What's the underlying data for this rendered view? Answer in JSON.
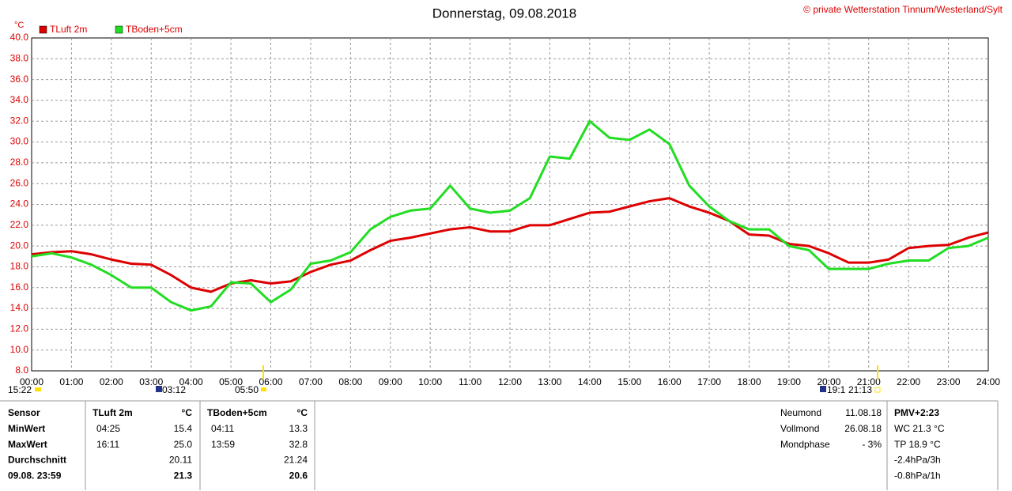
{
  "chart_data": {
    "type": "line",
    "title": "Donnerstag, 09.08.2018",
    "copyright": "© private Wetterstation Tinnum/Westerland/Sylt",
    "y_unit": "°C",
    "x": [
      0,
      0.5,
      1,
      1.5,
      2,
      2.5,
      3,
      3.5,
      4,
      4.5,
      5,
      5.5,
      6,
      6.5,
      7,
      7.5,
      8,
      8.5,
      9,
      9.5,
      10,
      10.5,
      11,
      11.5,
      12,
      12.5,
      13,
      13.5,
      14,
      14.5,
      15,
      15.5,
      16,
      16.5,
      17,
      17.5,
      18,
      18.5,
      19,
      19.5,
      20,
      20.5,
      21,
      21.5,
      22,
      22.5,
      23,
      23.5,
      24
    ],
    "series": [
      {
        "name": "TLuft 2m",
        "color": "#dd0000",
        "values": [
          19.2,
          19.4,
          19.5,
          19.2,
          18.7,
          18.3,
          18.2,
          17.2,
          16.0,
          15.6,
          16.4,
          16.7,
          16.4,
          16.6,
          17.5,
          18.2,
          18.6,
          19.6,
          20.5,
          20.8,
          21.2,
          21.6,
          21.8,
          21.4,
          21.4,
          22.0,
          22.0,
          22.6,
          23.2,
          23.3,
          23.8,
          24.3,
          24.6,
          23.8,
          23.2,
          22.4,
          21.1,
          21.0,
          20.2,
          20.0,
          19.3,
          18.4,
          18.4,
          18.7,
          19.8,
          20.0,
          20.1,
          20.8,
          21.3
        ]
      },
      {
        "name": "TBoden+5cm",
        "color": "#22dd22",
        "values": [
          19.0,
          19.3,
          18.9,
          18.2,
          17.2,
          16.0,
          16.0,
          14.6,
          13.8,
          14.2,
          16.5,
          16.4,
          14.6,
          15.8,
          18.3,
          18.6,
          19.4,
          21.6,
          22.8,
          23.4,
          23.6,
          25.8,
          23.6,
          23.2,
          23.4,
          24.6,
          28.6,
          28.4,
          32.0,
          30.4,
          30.2,
          31.2,
          29.8,
          25.8,
          23.8,
          22.4,
          21.6,
          21.6,
          20.0,
          19.6,
          17.8,
          17.8,
          17.8,
          18.3,
          18.6,
          18.6,
          19.8,
          20.0,
          20.8
        ]
      }
    ],
    "xlim": [
      0,
      24
    ],
    "xticks": [
      {
        "value": 0,
        "label": "00:00"
      },
      {
        "value": 1,
        "label": "01:00"
      },
      {
        "value": 2,
        "label": "02:00"
      },
      {
        "value": 3,
        "label": "03:00"
      },
      {
        "value": 4,
        "label": "04:00"
      },
      {
        "value": 5,
        "label": "05:00"
      },
      {
        "value": 6,
        "label": "06:00"
      },
      {
        "value": 7,
        "label": "07:00"
      },
      {
        "value": 8,
        "label": "08:00"
      },
      {
        "value": 9,
        "label": "09:00"
      },
      {
        "value": 10,
        "label": "10:00"
      },
      {
        "value": 11,
        "label": "11:00"
      },
      {
        "value": 12,
        "label": "12:00"
      },
      {
        "value": 13,
        "label": "13:00"
      },
      {
        "value": 14,
        "label": "14:00"
      },
      {
        "value": 15,
        "label": "15:00"
      },
      {
        "value": 16,
        "label": "16:00"
      },
      {
        "value": 17,
        "label": "17:00"
      },
      {
        "value": 18,
        "label": "18:00"
      },
      {
        "value": 19,
        "label": "19:00"
      },
      {
        "value": 20,
        "label": "20:00"
      },
      {
        "value": 21,
        "label": "21:00"
      },
      {
        "value": 22,
        "label": "22:00"
      },
      {
        "value": 23,
        "label": "23:00"
      },
      {
        "value": 24,
        "label": "24:00"
      }
    ],
    "ylim": [
      8,
      40
    ],
    "yticks": [
      {
        "value": 8,
        "label": "8.0"
      },
      {
        "value": 10,
        "label": "10.0"
      },
      {
        "value": 12,
        "label": "12.0"
      },
      {
        "value": 14,
        "label": "14.0"
      },
      {
        "value": 16,
        "label": "16.0"
      },
      {
        "value": 18,
        "label": "18.0"
      },
      {
        "value": 20,
        "label": "20.0"
      },
      {
        "value": 22,
        "label": "22.0"
      },
      {
        "value": 24,
        "label": "24.0"
      },
      {
        "value": 26,
        "label": "26.0"
      },
      {
        "value": 28,
        "label": "28.0"
      },
      {
        "value": 30,
        "label": "30.0"
      },
      {
        "value": 32,
        "label": "32.0"
      },
      {
        "value": 34,
        "label": "34.0"
      },
      {
        "value": 36,
        "label": "36.0"
      },
      {
        "value": 38,
        "label": "38.0"
      },
      {
        "value": 40,
        "label": "40.0"
      }
    ],
    "grid": true,
    "markers": [
      "15:22",
      "03:12",
      "05:50",
      "19:1",
      "21:13"
    ]
  },
  "table": {
    "header": [
      "Sensor",
      "TLuft 2m",
      "°C",
      "TBoden+5cm",
      "°C"
    ],
    "rows": [
      {
        "label": "MinWert",
        "t1": "04:25",
        "v1": "15.4",
        "t2": "04:11",
        "v2": "13.3"
      },
      {
        "label": "MaxWert",
        "t1": "16:11",
        "v1": "25.0",
        "t2": "13:59",
        "v2": "32.8"
      },
      {
        "label": "Durchschnitt",
        "v1": "20.11",
        "v2": "21.24"
      },
      {
        "label": "09.08. 23:59",
        "v1": "21.3",
        "v2": "20.6"
      }
    ]
  },
  "moon": [
    {
      "name": "Neumond",
      "date": "11.08.18"
    },
    {
      "name": "Vollmond",
      "date": "26.08.18"
    },
    {
      "name": "Mondphase",
      "date": "- 3%"
    }
  ],
  "pmv": {
    "title": "PMV+2:23",
    "lines": [
      "WC 21.3 °C",
      "TP 18.9 °C",
      "-2.4hPa/3h",
      "-0.8hPa/1h"
    ]
  }
}
